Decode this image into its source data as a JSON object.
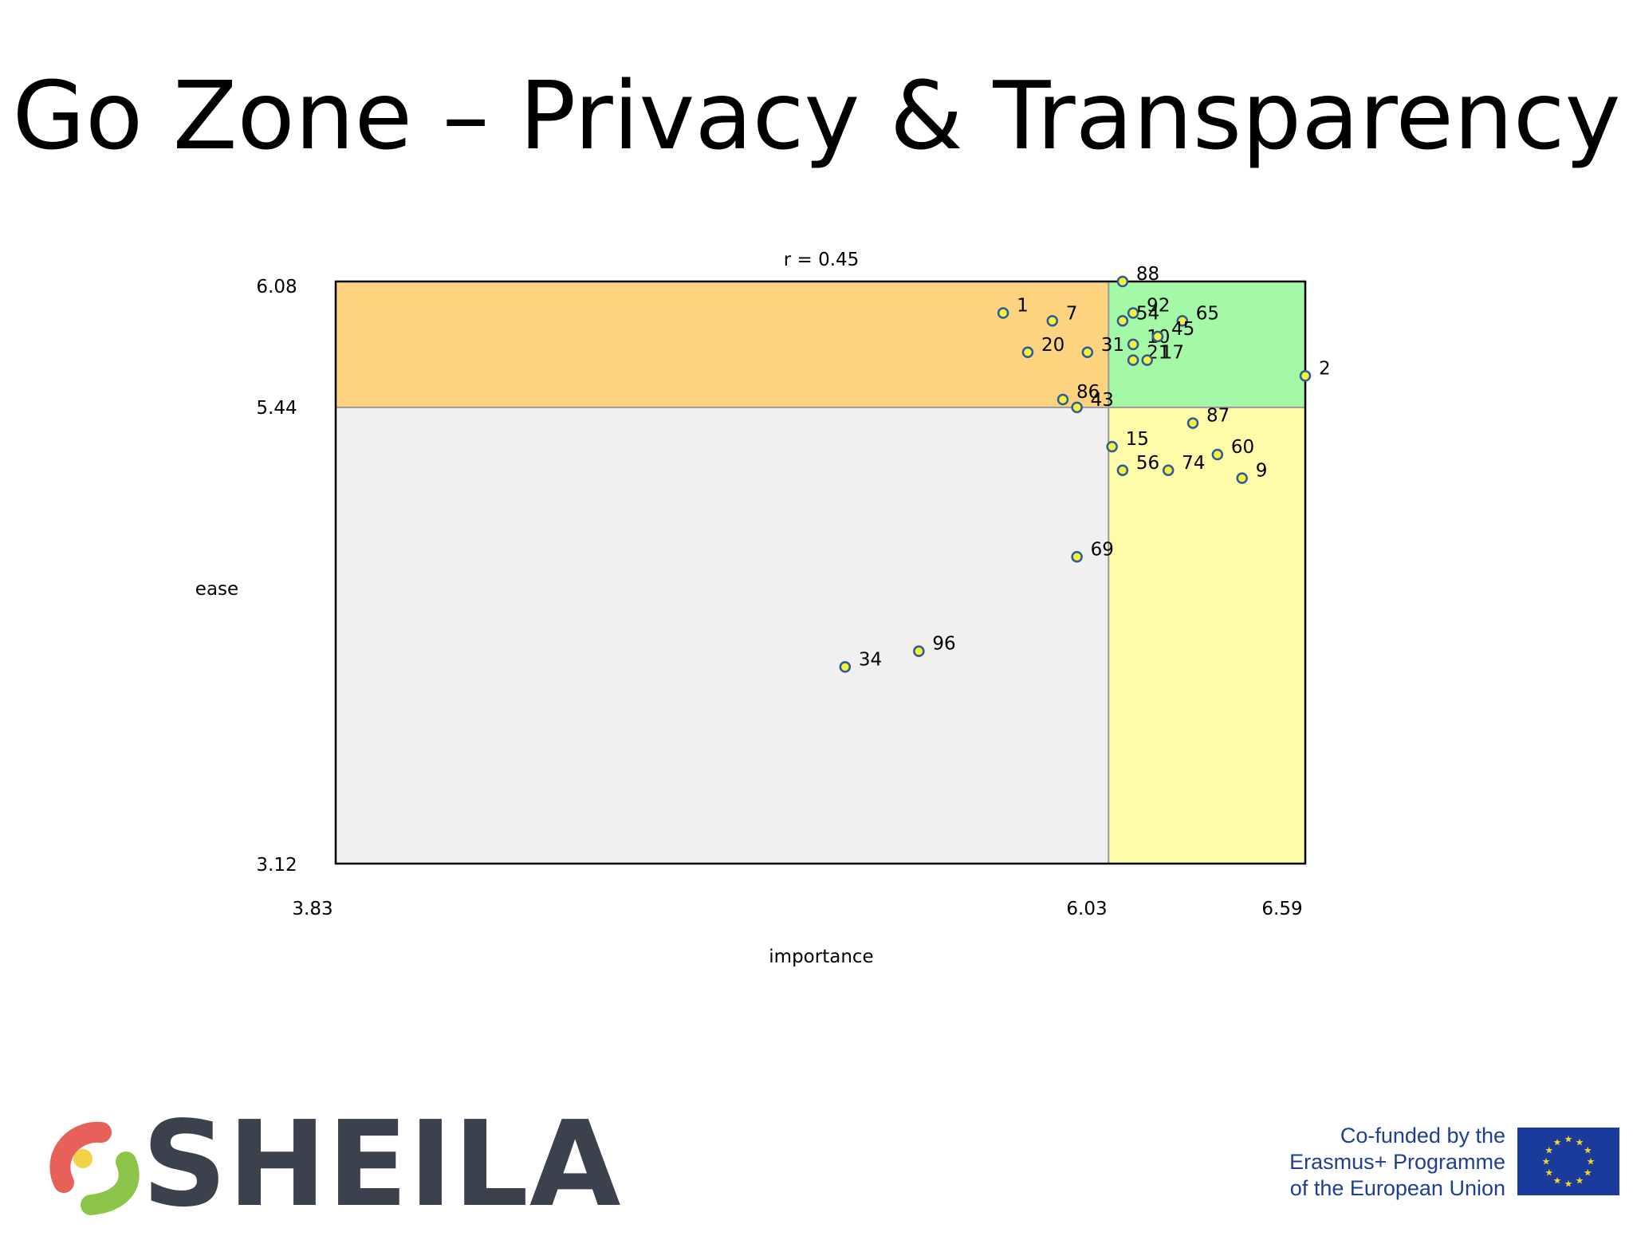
{
  "page": {
    "title": "Go Zone – Privacy & Transparency"
  },
  "chart_data": {
    "type": "scatter",
    "title": "r = 0.45",
    "xlabel": "importance",
    "ylabel": "ease",
    "xlim": [
      3.83,
      6.59
    ],
    "ylim": [
      3.12,
      6.08
    ],
    "x_mean": 6.03,
    "y_mean": 5.44,
    "x_ticks": [
      "3.83",
      "6.03",
      "6.59"
    ],
    "y_ticks": [
      "6.08",
      "5.44",
      "3.12"
    ],
    "quadrant_colors": {
      "top_left": "#fdd380",
      "top_right": "#a3f9a5",
      "bottom_left": "#f1eff0",
      "bottom_right": "#fefba9"
    },
    "point_color": "#f2f23a",
    "point_edge": "#2e5a9c",
    "points": [
      {
        "label": "88",
        "x": 6.07,
        "y": 6.08
      },
      {
        "label": "1",
        "x": 5.73,
        "y": 5.92
      },
      {
        "label": "7",
        "x": 5.87,
        "y": 5.88
      },
      {
        "label": "92",
        "x": 6.1,
        "y": 5.92
      },
      {
        "label": "54",
        "x": 6.07,
        "y": 5.88
      },
      {
        "label": "65",
        "x": 6.24,
        "y": 5.88
      },
      {
        "label": "10",
        "x": 6.1,
        "y": 5.76
      },
      {
        "label": "45",
        "x": 6.17,
        "y": 5.8
      },
      {
        "label": "20",
        "x": 5.8,
        "y": 5.72
      },
      {
        "label": "31",
        "x": 5.97,
        "y": 5.72
      },
      {
        "label": "21",
        "x": 6.1,
        "y": 5.68
      },
      {
        "label": "17",
        "x": 6.14,
        "y": 5.68
      },
      {
        "label": "2",
        "x": 6.59,
        "y": 5.6
      },
      {
        "label": "86",
        "x": 5.9,
        "y": 5.48
      },
      {
        "label": "43",
        "x": 5.94,
        "y": 5.44
      },
      {
        "label": "87",
        "x": 6.27,
        "y": 5.36
      },
      {
        "label": "15",
        "x": 6.04,
        "y": 5.24
      },
      {
        "label": "60",
        "x": 6.34,
        "y": 5.2
      },
      {
        "label": "56",
        "x": 6.07,
        "y": 5.12
      },
      {
        "label": "74",
        "x": 6.2,
        "y": 5.12
      },
      {
        "label": "9",
        "x": 6.41,
        "y": 5.08
      },
      {
        "label": "69",
        "x": 5.94,
        "y": 4.68
      },
      {
        "label": "96",
        "x": 5.49,
        "y": 4.2
      },
      {
        "label": "34",
        "x": 5.28,
        "y": 4.12
      }
    ]
  },
  "footer": {
    "logo_text": "SHEILA",
    "cofunded_lines": [
      "Co-funded by the",
      "Erasmus+ Programme",
      "of the European Union"
    ]
  }
}
